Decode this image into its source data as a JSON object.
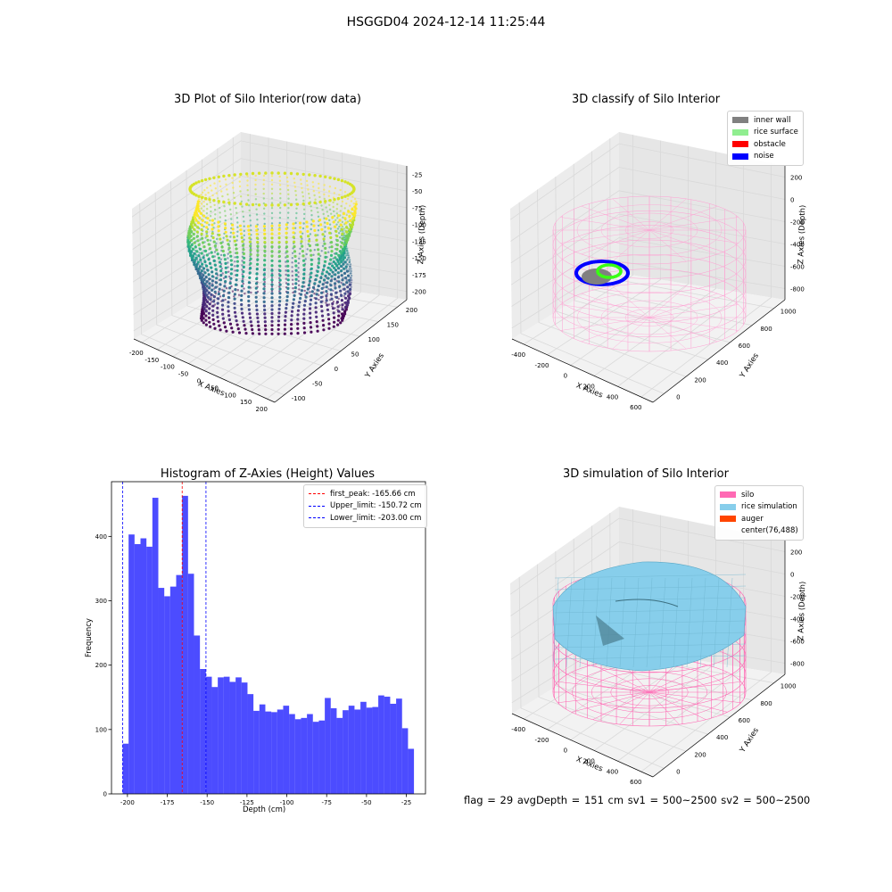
{
  "figure": {
    "suptitle": "HSGGD04 2024-12-14 11:25:44",
    "footer": "flag = 29  avgDepth = 151 cm  sv1 = 500~2500  sv2 = 500~2500"
  },
  "panels": {
    "raw": {
      "title": "3D Plot of Silo Interior(row data)",
      "xlabel": "X Axies",
      "ylabel": "Y Axies",
      "zlabel": "Z Axies (Depth)",
      "xticks": [
        "-200",
        "-150",
        "-100",
        "-50",
        "0",
        "50",
        "100",
        "150",
        "200"
      ],
      "yticks": [
        "-100",
        "-50",
        "0",
        "50",
        "100",
        "150",
        "200"
      ],
      "zticks": [
        "-25",
        "-50",
        "-75",
        "-100",
        "-125",
        "-150",
        "-175",
        "-200"
      ],
      "colormap": "viridis"
    },
    "classify": {
      "title": "3D classify of Silo Interior",
      "xlabel": "X Axies",
      "ylabel": "Y Axies",
      "zlabel": "Z Axies (Depth)",
      "xticks": [
        "-400",
        "-200",
        "0",
        "200",
        "400",
        "600"
      ],
      "yticks": [
        "0",
        "200",
        "400",
        "600",
        "800",
        "1000"
      ],
      "zticks": [
        "200",
        "0",
        "-200",
        "-400",
        "-600",
        "-800"
      ],
      "legend": [
        {
          "label": "inner wall",
          "color": "#808080"
        },
        {
          "label": "rice surface",
          "color": "#90ee90"
        },
        {
          "label": "obstacle",
          "color": "#ff0000"
        },
        {
          "label": "noise",
          "color": "#0000ff"
        }
      ],
      "wire_color": "#ff9ed2"
    },
    "simulation": {
      "title": "3D simulation of Silo Interior",
      "xlabel": "X Axies",
      "ylabel": "Y Axies",
      "zlabel": "Z Axies (Depth)",
      "xticks": [
        "-400",
        "-200",
        "0",
        "200",
        "400",
        "600"
      ],
      "yticks": [
        "0",
        "200",
        "400",
        "600",
        "800",
        "1000"
      ],
      "zticks": [
        "200",
        "0",
        "-200",
        "-400",
        "-600",
        "-800"
      ],
      "legend": [
        {
          "label": "silo",
          "color": "#ff69b4"
        },
        {
          "label": "rice simulation",
          "color": "#87ceeb"
        },
        {
          "label": "auger",
          "color": "#ff4500"
        },
        {
          "label": "center(76,488)",
          "color": "none"
        }
      ]
    }
  },
  "chart_data": {
    "type": "bar",
    "title": "Histogram of Z-Axies (Height) Values",
    "xlabel": "Depth (cm)",
    "ylabel": "Frequency",
    "xlim": [
      -210,
      -13
    ],
    "ylim": [
      0,
      485
    ],
    "xticks": [
      -200,
      -175,
      -150,
      -125,
      -100,
      -75,
      -50,
      -25
    ],
    "xtick_labels": [
      "-200",
      "-175",
      "-150",
      "-125",
      "-100",
      "-75",
      "-50",
      "-25"
    ],
    "yticks": [
      0,
      100,
      200,
      300,
      400
    ],
    "ytick_labels": [
      "0",
      "100",
      "200",
      "300",
      "400"
    ],
    "bin_start": -203.0,
    "bin_width": 3.73,
    "values": [
      78,
      403,
      388,
      397,
      384,
      460,
      320,
      307,
      322,
      340,
      463,
      342,
      246,
      194,
      182,
      166,
      181,
      182,
      174,
      181,
      173,
      155,
      129,
      139,
      128,
      127,
      131,
      137,
      124,
      116,
      118,
      124,
      112,
      114,
      149,
      133,
      118,
      130,
      137,
      131,
      143,
      134,
      135,
      153,
      151,
      140,
      148,
      102,
      70
    ],
    "bar_color": "#0000ff",
    "bar_alpha": 0.7,
    "lines": [
      {
        "name": "first_peak: -165.66 cm",
        "x": -165.66,
        "color": "#ff0000"
      },
      {
        "name": "Upper_limit: -150.72 cm",
        "x": -150.72,
        "color": "#0000ff"
      },
      {
        "name": "Lower_limit: -203.00 cm",
        "x": -203.0,
        "color": "#0000ff"
      }
    ],
    "legend_position": "upper right"
  }
}
